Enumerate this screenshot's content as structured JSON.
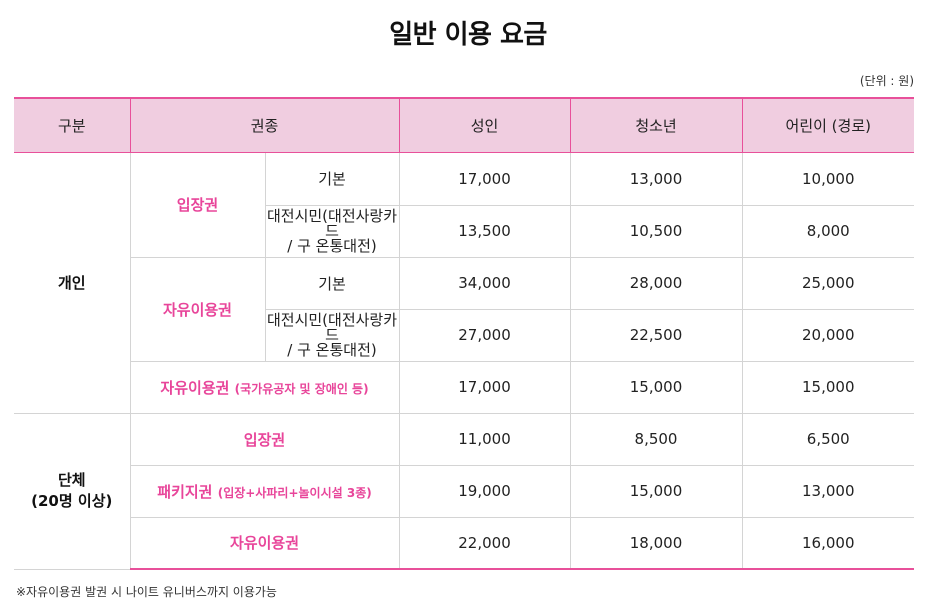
{
  "title": "일반 이용 요금",
  "unit": "(단위 : 원)",
  "headers": [
    "구분",
    "권종",
    "성인",
    "청소년",
    "어린이 (경로)"
  ],
  "groups": {
    "individual": "개인",
    "group": "단체\n(20명 이상)"
  },
  "rows": [
    {
      "ticket": "입장권",
      "sub": "기본",
      "adult": "17,000",
      "youth": "13,000",
      "child": "10,000"
    },
    {
      "sub": "대전시민(대전사랑카드\n/ 구 온통대전)",
      "adult": "13,500",
      "youth": "10,500",
      "child": "8,000"
    },
    {
      "ticket": "자유이용권",
      "sub": "기본",
      "adult": "34,000",
      "youth": "28,000",
      "child": "25,000"
    },
    {
      "sub": "대전시민(대전사랑카드\n/ 구 온통대전)",
      "adult": "27,000",
      "youth": "22,500",
      "child": "20,000"
    },
    {
      "ticket": "자유이용권",
      "ticket_note": "(국가유공자 및 장애인 등)",
      "adult": "17,000",
      "youth": "15,000",
      "child": "15,000"
    },
    {
      "ticket": "입장권",
      "adult": "11,000",
      "youth": "8,500",
      "child": "6,500"
    },
    {
      "ticket": "패키지권",
      "ticket_note": "(입장+사파리+놀이시설 3종)",
      "adult": "19,000",
      "youth": "15,000",
      "child": "13,000"
    },
    {
      "ticket": "자유이용권",
      "adult": "22,000",
      "youth": "18,000",
      "child": "16,000"
    }
  ],
  "note": "※자유이용권 발권 시 나이트 유니버스까지 이용가능",
  "colors": {
    "accent": "#e8509a",
    "header_bg": "#f0cde0",
    "pink_text": "#e8459a"
  }
}
